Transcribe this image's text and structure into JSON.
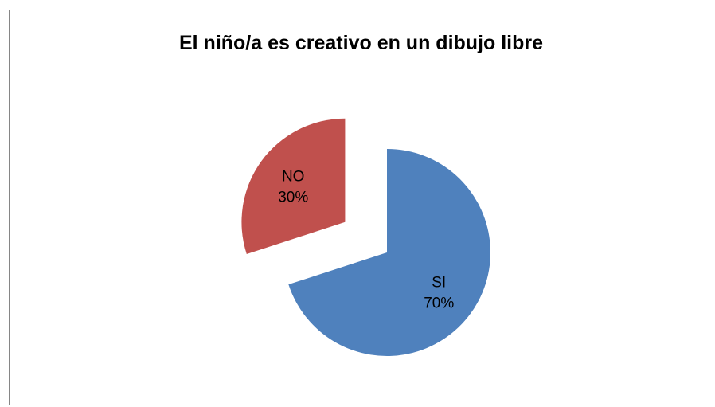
{
  "chart_data": {
    "type": "pie",
    "title": "El niño/a es creativo en un dibujo libre",
    "slices": [
      {
        "label": "SI",
        "value": 70,
        "percent_label": "70%",
        "color": "#4f81bd"
      },
      {
        "label": "NO",
        "value": 30,
        "percent_label": "30%",
        "color": "#c0504d"
      }
    ],
    "legend": "none",
    "exploded": true
  }
}
